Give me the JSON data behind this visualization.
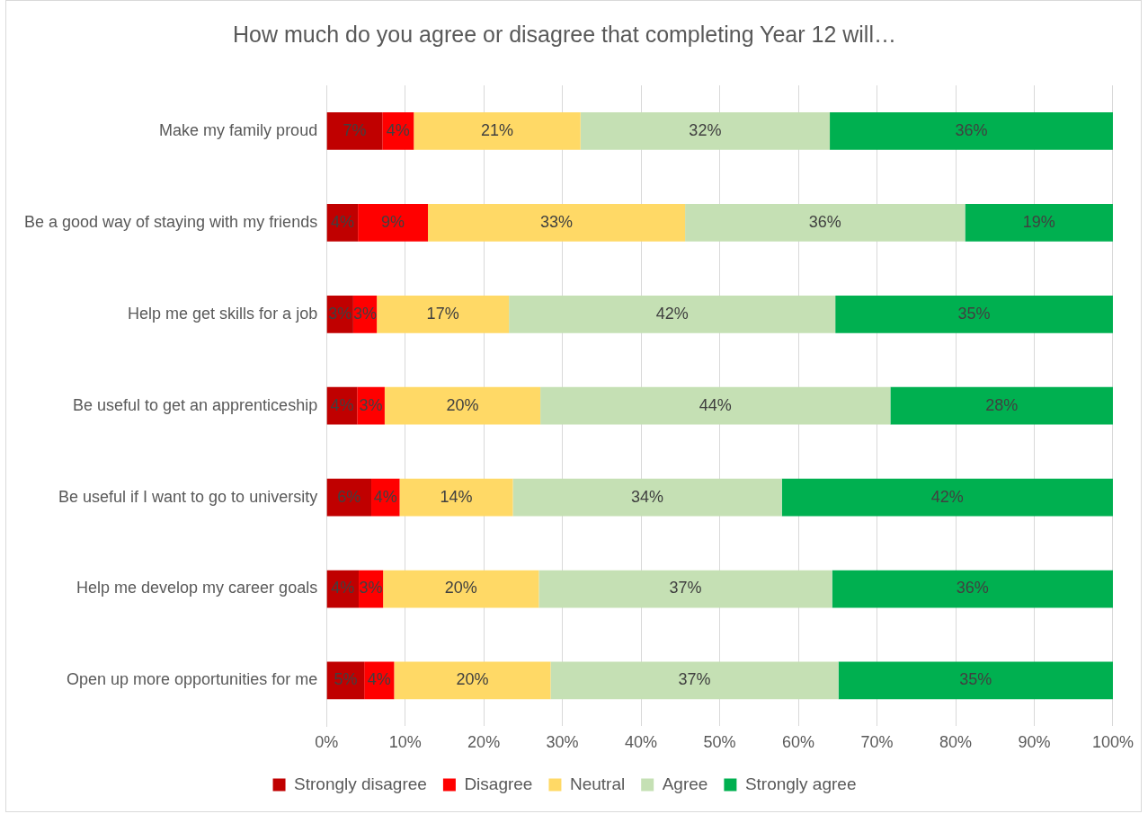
{
  "chart_data": {
    "type": "bar",
    "orientation": "horizontal",
    "stacked": true,
    "title": "How much do you agree or disagree that completing Year 12 will…",
    "categories": [
      "Make my family proud",
      "Be a good way of staying with my friends",
      "Help me get skills for a job",
      "Be useful to get an apprenticeship",
      "Be useful if I want to go to university",
      "Help me develop my career goals",
      "Open up more opportunities for me"
    ],
    "series": [
      {
        "name": "Strongly disagree",
        "color": "#c00000",
        "values": [
          7.1,
          4.0,
          3.4,
          3.9,
          5.7,
          4.1,
          4.8
        ],
        "value_labels": [
          "7%",
          "4%",
          "3%",
          "4%",
          "6%",
          "4%",
          "5%"
        ]
      },
      {
        "name": "Disagree",
        "color": "#ff0000",
        "values": [
          4.0,
          8.9,
          3.0,
          3.5,
          3.6,
          3.1,
          3.8
        ],
        "value_labels": [
          "4%",
          "9%",
          "3%",
          "3%",
          "4%",
          "3%",
          "4%"
        ]
      },
      {
        "name": "Neutral",
        "color": "#ffd966",
        "values": [
          21.2,
          32.7,
          16.8,
          19.8,
          14.4,
          19.8,
          19.9
        ],
        "value_labels": [
          "21%",
          "33%",
          "17%",
          "20%",
          "14%",
          "20%",
          "20%"
        ]
      },
      {
        "name": "Agree",
        "color": "#c5e0b4",
        "values": [
          31.7,
          35.6,
          41.5,
          44.5,
          34.2,
          37.3,
          36.6
        ],
        "value_labels": [
          "32%",
          "36%",
          "42%",
          "44%",
          "34%",
          "37%",
          "37%"
        ]
      },
      {
        "name": "Strongly agree",
        "color": "#00b050",
        "values": [
          36.0,
          18.8,
          35.3,
          28.3,
          42.1,
          35.7,
          34.9
        ],
        "value_labels": [
          "36%",
          "19%",
          "35%",
          "28%",
          "42%",
          "36%",
          "35%"
        ]
      }
    ],
    "xlim": [
      0,
      100
    ],
    "xticks": [
      {
        "value": 0,
        "label": "0%"
      },
      {
        "value": 10,
        "label": "10%"
      },
      {
        "value": 20,
        "label": "20%"
      },
      {
        "value": 30,
        "label": "30%"
      },
      {
        "value": 40,
        "label": "40%"
      },
      {
        "value": 50,
        "label": "50%"
      },
      {
        "value": 60,
        "label": "60%"
      },
      {
        "value": 70,
        "label": "70%"
      },
      {
        "value": 80,
        "label": "80%"
      },
      {
        "value": 90,
        "label": "90%"
      },
      {
        "value": 100,
        "label": "100%"
      }
    ],
    "grid": "x",
    "legend": "bottom"
  }
}
